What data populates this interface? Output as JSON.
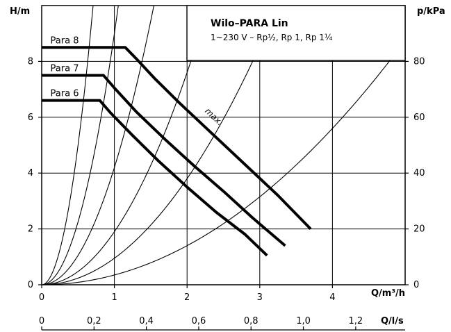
{
  "chart_data": {
    "type": "line",
    "title": "Wilo–PARA Lin",
    "subtitle": "1~230 V – Rp½, Rp 1, Rp 1¼",
    "xlabel": "Q/m³/h",
    "ylabel_left": "H/m",
    "ylabel_right": "p/kPa",
    "xlabel_secondary": "Q/l/s",
    "xlim": [
      0,
      5
    ],
    "ylim": [
      0,
      10
    ],
    "x_ticks": [
      "0",
      "1",
      "2",
      "3",
      "4"
    ],
    "y_ticks_left": [
      "0",
      "2",
      "4",
      "6",
      "8"
    ],
    "y_ticks_right": [
      "0",
      "20",
      "40",
      "60",
      "80"
    ],
    "x_ticks_secondary": [
      "0",
      "0,2",
      "0,4",
      "0,6",
      "0,8",
      "1,0",
      "1,2"
    ],
    "grid": true,
    "legend": "top-right",
    "series": [
      {
        "name": "Para 8",
        "points": [
          [
            0,
            8.5
          ],
          [
            1.15,
            8.5
          ],
          [
            1.3,
            8.1
          ],
          [
            1.55,
            7.4
          ],
          [
            1.9,
            6.5
          ],
          [
            2.35,
            5.4
          ],
          [
            2.8,
            4.3
          ],
          [
            3.25,
            3.2
          ],
          [
            3.7,
            2.0
          ]
        ]
      },
      {
        "name": "Para 7",
        "points": [
          [
            0,
            7.5
          ],
          [
            0.85,
            7.5
          ],
          [
            1.0,
            7.05
          ],
          [
            1.3,
            6.2
          ],
          [
            1.7,
            5.2
          ],
          [
            2.1,
            4.25
          ],
          [
            2.5,
            3.35
          ],
          [
            2.9,
            2.4
          ],
          [
            3.35,
            1.4
          ]
        ]
      },
      {
        "name": "Para 6",
        "points": [
          [
            0,
            6.6
          ],
          [
            0.8,
            6.6
          ],
          [
            0.95,
            6.15
          ],
          [
            1.25,
            5.35
          ],
          [
            1.6,
            4.45
          ],
          [
            2.0,
            3.5
          ],
          [
            2.4,
            2.6
          ],
          [
            2.8,
            1.8
          ],
          [
            3.1,
            1.05
          ]
        ]
      }
    ],
    "annotations": [
      "max."
    ],
    "system_curve_coefficients": [
      20,
      9,
      4.2,
      1.9,
      0.95,
      0.35
    ]
  }
}
